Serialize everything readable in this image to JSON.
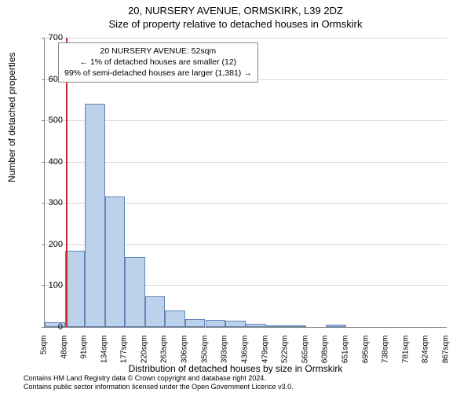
{
  "titles": {
    "main": "20, NURSERY AVENUE, ORMSKIRK, L39 2DZ",
    "sub": "Size of property relative to detached houses in Ormskirk"
  },
  "axes": {
    "y_label": "Number of detached properties",
    "x_label": "Distribution of detached houses by size in Ormskirk",
    "y_max": 700,
    "y_ticks": [
      0,
      100,
      200,
      300,
      400,
      500,
      600,
      700
    ],
    "x_ticks": [
      5,
      48,
      91,
      134,
      177,
      220,
      263,
      306,
      350,
      393,
      436,
      479,
      522,
      565,
      608,
      651,
      695,
      738,
      781,
      824,
      867
    ],
    "x_unit": "sqm",
    "x_min": 5,
    "x_max": 867
  },
  "chart": {
    "type": "histogram",
    "bar_fill": "#bcd1ea",
    "bar_stroke": "#6384b8",
    "grid_color": "#d9d9d9",
    "background": "#ffffff",
    "bars": [
      {
        "x": 5,
        "w": 43,
        "v": 12
      },
      {
        "x": 48,
        "w": 43,
        "v": 185
      },
      {
        "x": 91,
        "w": 43,
        "v": 540
      },
      {
        "x": 134,
        "w": 43,
        "v": 315
      },
      {
        "x": 177,
        "w": 43,
        "v": 170
      },
      {
        "x": 220,
        "w": 43,
        "v": 75
      },
      {
        "x": 263,
        "w": 43,
        "v": 40
      },
      {
        "x": 306,
        "w": 43,
        "v": 20
      },
      {
        "x": 350,
        "w": 43,
        "v": 18
      },
      {
        "x": 393,
        "w": 43,
        "v": 15
      },
      {
        "x": 436,
        "w": 43,
        "v": 8
      },
      {
        "x": 479,
        "w": 43,
        "v": 2
      },
      {
        "x": 522,
        "w": 43,
        "v": 1
      },
      {
        "x": 565,
        "w": 43,
        "v": 0
      },
      {
        "x": 608,
        "w": 43,
        "v": 5
      },
      {
        "x": 651,
        "w": 43,
        "v": 0
      },
      {
        "x": 695,
        "w": 43,
        "v": 0
      },
      {
        "x": 738,
        "w": 43,
        "v": 0
      },
      {
        "x": 781,
        "w": 43,
        "v": 0
      },
      {
        "x": 824,
        "w": 43,
        "v": 0
      }
    ]
  },
  "reference": {
    "value_sqm": 52,
    "color": "#c82d2d"
  },
  "info_box": {
    "line1": "20 NURSERY AVENUE: 52sqm",
    "line2": "← 1% of detached houses are smaller (12)",
    "line3": "99% of semi-detached houses are larger (1,381) →"
  },
  "footer": {
    "line1": "Contains HM Land Registry data © Crown copyright and database right 2024.",
    "line2": "Contains public sector information licensed under the Open Government Licence v3.0."
  }
}
